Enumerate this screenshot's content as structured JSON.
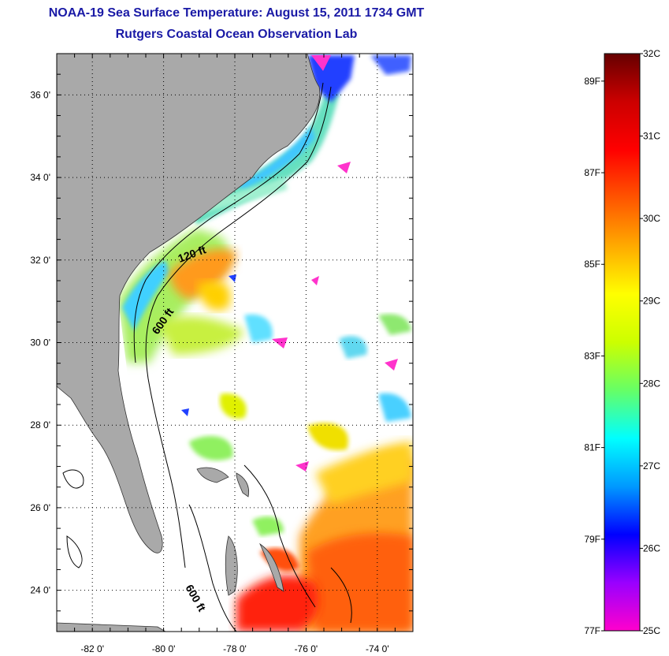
{
  "header": {
    "title_line1": "NOAA-19 Sea Surface Temperature:  August 15, 2011 1734 GMT",
    "title_line2": "Rutgers Coastal Ocean Observation Lab"
  },
  "map": {
    "lon_range": [
      -83,
      -73
    ],
    "lat_range": [
      23,
      37
    ],
    "lon_ticks": [
      {
        "value": -82,
        "label": "-82 0'"
      },
      {
        "value": -80,
        "label": "-80 0'"
      },
      {
        "value": -78,
        "label": "-78 0'"
      },
      {
        "value": -76,
        "label": "-76 0'"
      },
      {
        "value": -74,
        "label": "-74 0'"
      }
    ],
    "lat_ticks": [
      {
        "value": 36,
        "label": "36 0'"
      },
      {
        "value": 34,
        "label": "34 0'"
      },
      {
        "value": 32,
        "label": "32 0'"
      },
      {
        "value": 30,
        "label": "30 0'"
      },
      {
        "value": 28,
        "label": "28 0'"
      },
      {
        "value": 26,
        "label": "26 0'"
      },
      {
        "value": 24,
        "label": "24 0'"
      }
    ],
    "contour_labels": [
      {
        "text": "120 ft"
      },
      {
        "text": "600 ft"
      },
      {
        "text": "600 ft"
      }
    ],
    "colors": {
      "land": "#a9a9a9",
      "cloud": "#ffffff",
      "grid": "#000000"
    }
  },
  "colorbar": {
    "min_c": 25,
    "max_c": 32,
    "celsius_labels": [
      {
        "value": 32,
        "label": "32C"
      },
      {
        "value": 31,
        "label": "31C"
      },
      {
        "value": 30,
        "label": "30C"
      },
      {
        "value": 29,
        "label": "29C"
      },
      {
        "value": 28,
        "label": "28C"
      },
      {
        "value": 27,
        "label": "27C"
      },
      {
        "value": 26,
        "label": "26C"
      },
      {
        "value": 25,
        "label": "25C"
      }
    ],
    "fahrenheit_labels": [
      {
        "value": 89,
        "label": "89F"
      },
      {
        "value": 87,
        "label": "87F"
      },
      {
        "value": 85,
        "label": "85F"
      },
      {
        "value": 83,
        "label": "83F"
      },
      {
        "value": 81,
        "label": "81F"
      },
      {
        "value": 79,
        "label": "79F"
      },
      {
        "value": 77,
        "label": "77F"
      }
    ],
    "gradient_colors": [
      "#ff00cc",
      "#9900ff",
      "#0000ff",
      "#0099ff",
      "#00ffff",
      "#66ff66",
      "#ccff00",
      "#ffff00",
      "#ffaa00",
      "#ff5500",
      "#ff0000",
      "#cc0000",
      "#660000"
    ]
  }
}
